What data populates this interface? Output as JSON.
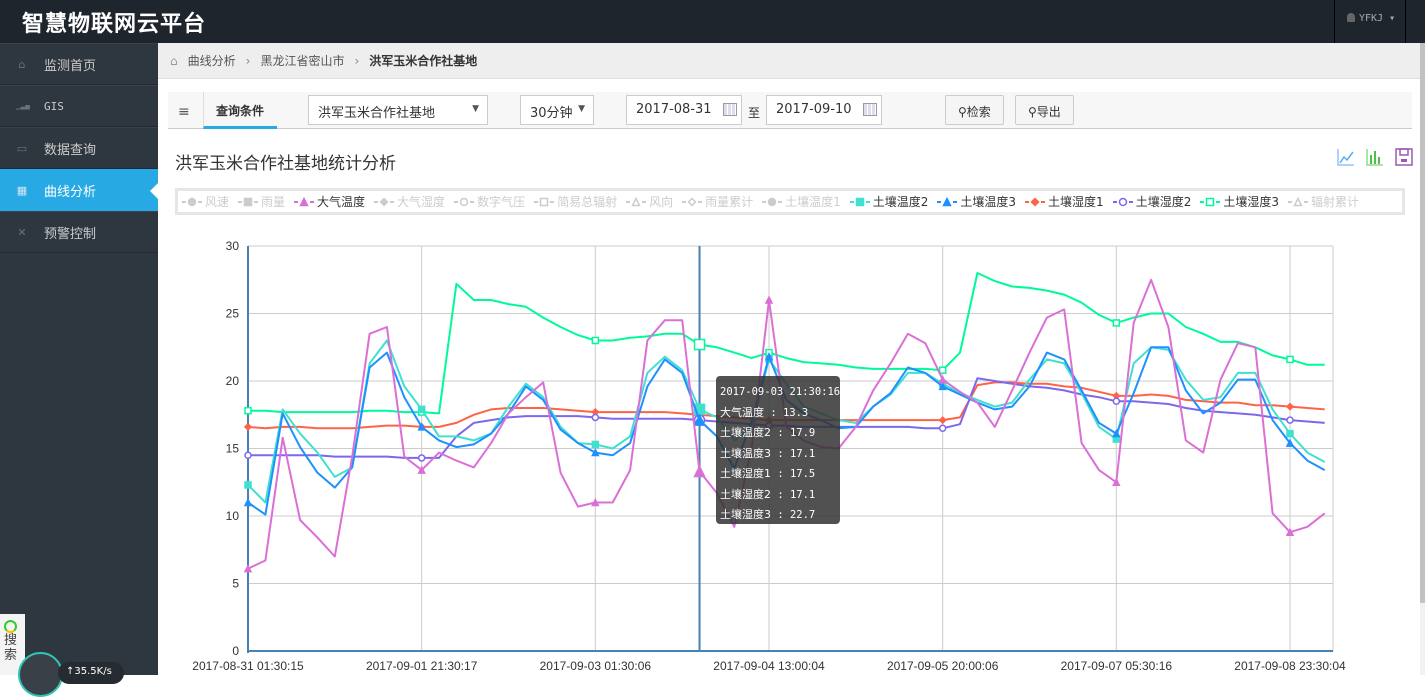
{
  "app": {
    "title": "智慧物联网云平台",
    "user": "YFKJ"
  },
  "sidebar": {
    "items": [
      {
        "label": "监测首页",
        "icon": "home-icon",
        "glyph": "⌂"
      },
      {
        "label": "GIS",
        "icon": "signal-icon",
        "glyph": "▁▃▅"
      },
      {
        "label": "数据查询",
        "icon": "inbox-icon",
        "glyph": "▭"
      },
      {
        "label": "曲线分析",
        "icon": "grid-icon",
        "glyph": "▦",
        "active": true
      },
      {
        "label": "预警控制",
        "icon": "fullscreen-icon",
        "glyph": "✕"
      }
    ]
  },
  "breadcrumb": {
    "items": [
      "曲线分析",
      "黑龙江省密山市",
      "洪军玉米合作社基地"
    ]
  },
  "query": {
    "tab": "查询条件",
    "site": "洪军玉米合作社基地",
    "interval": "30分钟",
    "start": "2017-08-31",
    "to": "至",
    "end": "2017-09-10",
    "search": "检索",
    "export": "导出"
  },
  "section_title": "洪军玉米合作社基地统计分析",
  "tooltip": {
    "time": "2017-09-03 21:30:16",
    "rows": [
      {
        "name": "大气温度",
        "value": "13.3"
      },
      {
        "name": "土壤温度2",
        "value": "17.9"
      },
      {
        "name": "土壤温度3",
        "value": "17.1"
      },
      {
        "name": "土壤湿度1",
        "value": "17.5"
      },
      {
        "name": "土壤湿度2",
        "value": "17.1"
      },
      {
        "name": "土壤湿度3",
        "value": "22.7"
      }
    ]
  },
  "widget": {
    "search": "搜索",
    "speed": "↑35.5K/s"
  },
  "chart_data": {
    "type": "line",
    "ylim": [
      0,
      30
    ],
    "yticks": [
      0,
      5,
      10,
      15,
      20,
      25,
      30
    ],
    "grid": true,
    "legend": "top",
    "hover_index": 26,
    "xtick_every": 10,
    "xticks": [
      "2017-08-31 01:30:15",
      "2017-09-01 21:30:17",
      "2017-09-03 01:30:06",
      "2017-09-04 13:00:04",
      "2017-09-05 20:00:06",
      "2017-09-07 05:30:16",
      "2017-09-08 23:30:04"
    ],
    "legend_items": [
      {
        "name": "风速",
        "marker": "circle",
        "active": false
      },
      {
        "name": "雨量",
        "marker": "rect",
        "active": false
      },
      {
        "name": "大气温度",
        "marker": "triangle",
        "active": true,
        "color": "#da70d6"
      },
      {
        "name": "大气湿度",
        "marker": "diamond",
        "active": false
      },
      {
        "name": "数字气压",
        "marker": "emptyCircle",
        "active": false
      },
      {
        "name": "简易总辐射",
        "marker": "emptyRect",
        "active": false
      },
      {
        "name": "风向",
        "marker": "emptyTriangle",
        "active": false
      },
      {
        "name": "雨量累计",
        "marker": "emptyDiamond",
        "active": false
      },
      {
        "name": "土壤温度1",
        "marker": "circle",
        "active": false
      },
      {
        "name": "土壤温度2",
        "marker": "rect",
        "active": true,
        "color": "#40e0d0"
      },
      {
        "name": "土壤温度3",
        "marker": "triangle",
        "active": true,
        "color": "#1e90ff"
      },
      {
        "name": "土壤湿度1",
        "marker": "diamond",
        "active": true,
        "color": "#ff6347"
      },
      {
        "name": "土壤湿度2",
        "marker": "emptyCircle",
        "active": true,
        "color": "#7b68ee"
      },
      {
        "name": "土壤湿度3",
        "marker": "emptyRect",
        "active": true,
        "color": "#00fa9a"
      },
      {
        "name": "辐射累计",
        "marker": "emptyTriangle",
        "active": false
      }
    ],
    "series": [
      {
        "name": "土壤湿度3",
        "color": "#00fa9a",
        "marker": "emptyRect",
        "values": [
          17.8,
          17.8,
          17.7,
          17.7,
          17.7,
          17.7,
          17.7,
          17.8,
          17.8,
          17.7,
          17.7,
          17.6,
          27.2,
          26.0,
          26.0,
          25.7,
          25.5,
          24.7,
          24.0,
          23.4,
          23.0,
          23.0,
          23.2,
          23.3,
          23.5,
          23.5,
          22.7,
          22.5,
          22.1,
          21.7,
          22.1,
          21.7,
          21.4,
          21.3,
          21.2,
          21.0,
          20.9,
          20.9,
          20.9,
          20.9,
          20.8,
          22.1,
          28.0,
          27.4,
          27.0,
          26.9,
          26.7,
          26.4,
          25.8,
          24.9,
          24.3,
          24.7,
          25.0,
          25.0,
          24.0,
          23.5,
          22.9,
          22.9,
          22.5,
          21.9,
          21.6,
          21.2,
          21.2
        ]
      },
      {
        "name": "土壤湿度1",
        "color": "#ff6347",
        "marker": "diamond",
        "values": [
          16.6,
          16.5,
          16.6,
          16.6,
          16.5,
          16.5,
          16.5,
          16.6,
          16.7,
          16.7,
          16.6,
          16.6,
          16.9,
          17.5,
          17.9,
          18.0,
          18.0,
          18.0,
          17.9,
          17.8,
          17.7,
          17.7,
          17.7,
          17.7,
          17.7,
          17.6,
          17.5,
          17.4,
          17.3,
          17.2,
          17.1,
          17.1,
          17.1,
          17.1,
          17.1,
          17.1,
          17.1,
          17.1,
          17.1,
          17.1,
          17.1,
          17.3,
          19.7,
          19.9,
          19.9,
          19.8,
          19.8,
          19.6,
          19.5,
          19.2,
          18.9,
          18.9,
          19.0,
          18.9,
          18.6,
          18.5,
          18.4,
          18.4,
          18.2,
          18.2,
          18.1,
          18.0,
          17.9
        ]
      },
      {
        "name": "土壤湿度2",
        "color": "#7b68ee",
        "marker": "emptyCircle",
        "values": [
          14.5,
          14.5,
          14.5,
          14.5,
          14.5,
          14.4,
          14.4,
          14.4,
          14.4,
          14.3,
          14.3,
          14.3,
          15.9,
          16.9,
          17.1,
          17.3,
          17.4,
          17.4,
          17.4,
          17.4,
          17.3,
          17.2,
          17.2,
          17.2,
          17.2,
          17.2,
          17.1,
          17.0,
          16.9,
          16.8,
          16.7,
          16.7,
          16.6,
          16.6,
          16.6,
          16.6,
          16.6,
          16.6,
          16.6,
          16.5,
          16.5,
          16.8,
          20.2,
          20.0,
          19.8,
          19.6,
          19.5,
          19.3,
          19.0,
          18.8,
          18.5,
          18.5,
          18.4,
          18.3,
          18.0,
          17.8,
          17.7,
          17.6,
          17.5,
          17.3,
          17.1,
          17.0,
          16.9
        ]
      },
      {
        "name": "土壤温度2",
        "color": "#40e0d0",
        "marker": "rect",
        "values": [
          12.3,
          11.0,
          17.9,
          16.1,
          14.7,
          12.9,
          13.6,
          21.3,
          23.0,
          19.6,
          17.9,
          15.9,
          15.9,
          15.6,
          16.1,
          18.1,
          19.8,
          18.8,
          16.6,
          15.4,
          15.3,
          15.0,
          15.9,
          20.6,
          21.8,
          20.8,
          17.9,
          17.3,
          15.6,
          16.6,
          21.6,
          19.8,
          18.1,
          17.6,
          17.1,
          16.9,
          18.1,
          19.0,
          20.6,
          20.6,
          19.8,
          19.1,
          18.6,
          18.1,
          18.4,
          20.1,
          21.6,
          21.3,
          19.1,
          16.6,
          15.7,
          21.3,
          22.5,
          22.3,
          20.1,
          18.6,
          18.8,
          20.6,
          20.6,
          17.9,
          16.1,
          14.7,
          14.0
        ]
      },
      {
        "name": "土壤温度3",
        "color": "#1e90ff",
        "marker": "triangle",
        "values": [
          11.0,
          10.1,
          17.6,
          15.1,
          13.2,
          12.1,
          13.6,
          21.0,
          22.1,
          18.8,
          16.6,
          15.6,
          15.1,
          15.3,
          16.1,
          17.6,
          19.6,
          18.6,
          16.4,
          15.4,
          14.7,
          14.5,
          15.4,
          19.6,
          21.6,
          20.6,
          17.1,
          15.9,
          13.5,
          17.0,
          21.8,
          18.6,
          17.6,
          17.1,
          16.5,
          16.6,
          18.1,
          19.1,
          21.0,
          20.6,
          19.6,
          19.0,
          18.4,
          17.9,
          18.1,
          19.6,
          22.1,
          21.6,
          19.3,
          16.9,
          16.1,
          19.1,
          22.5,
          22.5,
          19.3,
          17.6,
          18.4,
          20.1,
          20.1,
          17.1,
          15.4,
          14.1,
          13.4
        ]
      },
      {
        "name": "大气温度",
        "color": "#da70d6",
        "marker": "triangle",
        "values": [
          6.1,
          6.7,
          15.8,
          9.7,
          8.4,
          7.0,
          14.4,
          23.5,
          24.0,
          14.4,
          13.4,
          14.7,
          14.1,
          13.6,
          15.4,
          17.6,
          18.8,
          19.9,
          13.2,
          10.7,
          11.0,
          11.0,
          13.4,
          23.0,
          24.5,
          24.5,
          13.3,
          11.7,
          9.2,
          15.0,
          26.0,
          16.6,
          15.6,
          15.1,
          15.0,
          16.6,
          19.3,
          21.3,
          23.5,
          22.8,
          20.1,
          19.2,
          18.4,
          16.6,
          19.3,
          22.1,
          24.7,
          25.3,
          15.4,
          13.4,
          12.5,
          24.3,
          27.5,
          24.0,
          15.6,
          14.7,
          20.1,
          22.8,
          22.5,
          10.2,
          8.8,
          9.2,
          10.2
        ]
      }
    ]
  }
}
